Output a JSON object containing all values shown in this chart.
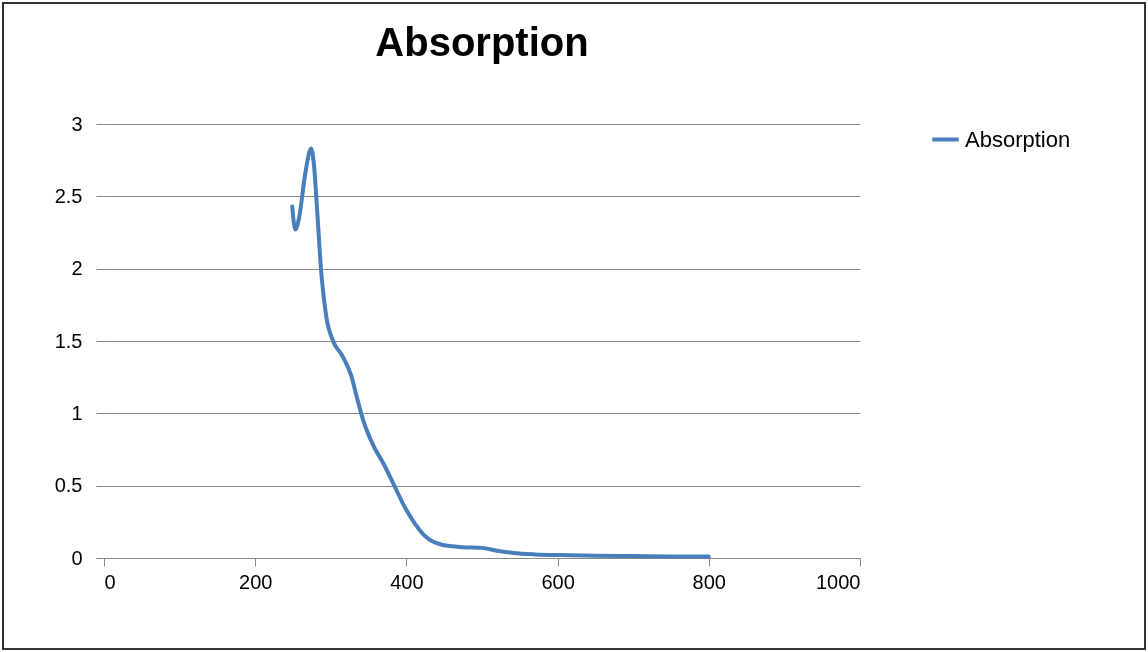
{
  "chart_data": {
    "type": "line",
    "title": "Absorption",
    "x": [
      249,
      253,
      258,
      266,
      274,
      278,
      282,
      287,
      294,
      303,
      315,
      327,
      335,
      343,
      357,
      370,
      384,
      397,
      411,
      425,
      448,
      475,
      500,
      520,
      541,
      570,
      607,
      650,
      700,
      750,
      800
    ],
    "series": [
      {
        "name": "Absorption",
        "color": "#4a7ebb",
        "values": [
          2.43,
          2.27,
          2.35,
          2.65,
          2.83,
          2.7,
          2.4,
          2.0,
          1.67,
          1.5,
          1.4,
          1.26,
          1.1,
          0.95,
          0.77,
          0.65,
          0.5,
          0.36,
          0.24,
          0.15,
          0.09,
          0.075,
          0.07,
          0.05,
          0.035,
          0.025,
          0.02,
          0.015,
          0.013,
          0.011,
          0.01
        ]
      }
    ],
    "xlim": [
      0,
      1000
    ],
    "xticks": [
      0,
      200,
      400,
      600,
      800,
      1000
    ],
    "ylim": [
      0,
      3
    ],
    "yticks": [
      0,
      0.5,
      1,
      1.5,
      2,
      2.5,
      3
    ],
    "grid": "y",
    "legend": "right",
    "marker": "none",
    "line_style": "solid"
  }
}
